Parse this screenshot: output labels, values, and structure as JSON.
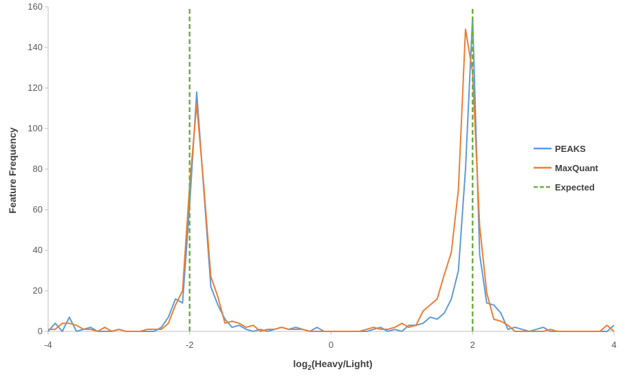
{
  "chart_data": {
    "type": "line",
    "title": "",
    "xlabel": "log2(Heavy/Light)",
    "xlabel_parts": {
      "prefix": "log",
      "subscript": "2",
      "suffix": "(Heavy/Light)"
    },
    "ylabel": "Feature Frequency",
    "xlim": [
      -4,
      4
    ],
    "ylim": [
      0,
      160
    ],
    "x_ticks": [
      -4,
      -2,
      0,
      2,
      4
    ],
    "y_ticks": [
      0,
      20,
      40,
      60,
      80,
      100,
      120,
      140,
      160
    ],
    "x_tick_labels": [
      "-4",
      "-2",
      "0",
      "2",
      "4"
    ],
    "y_tick_labels": [
      "0",
      "20",
      "40",
      "60",
      "80",
      "100",
      "120",
      "140",
      "160"
    ],
    "grid": false,
    "legend_position": "right",
    "series": [
      {
        "name": "PEAKS",
        "color": "#5B9BD5",
        "style": "solid",
        "x": [
          -4.0,
          -3.9,
          -3.8,
          -3.7,
          -3.6,
          -3.5,
          -3.4,
          -3.3,
          -3.2,
          -3.1,
          -3.0,
          -2.9,
          -2.8,
          -2.7,
          -2.6,
          -2.5,
          -2.4,
          -2.3,
          -2.2,
          -2.1,
          -2.0,
          -1.9,
          -1.8,
          -1.7,
          -1.6,
          -1.5,
          -1.4,
          -1.3,
          -1.2,
          -1.1,
          -1.0,
          -0.9,
          -0.8,
          -0.7,
          -0.6,
          -0.5,
          -0.4,
          -0.3,
          -0.2,
          -0.1,
          0.0,
          0.1,
          0.2,
          0.3,
          0.4,
          0.5,
          0.6,
          0.7,
          0.8,
          0.9,
          1.0,
          1.1,
          1.2,
          1.3,
          1.4,
          1.5,
          1.6,
          1.7,
          1.8,
          1.9,
          2.0,
          2.1,
          2.2,
          2.3,
          2.4,
          2.5,
          2.6,
          2.7,
          2.8,
          2.9,
          3.0,
          3.1,
          3.2,
          3.3,
          3.4,
          3.5,
          3.6,
          3.7,
          3.8,
          3.9,
          4.0
        ],
        "y": [
          0,
          4,
          0,
          7,
          0,
          1,
          2,
          0,
          0,
          0,
          1,
          0,
          0,
          0,
          0,
          0,
          2,
          7,
          16,
          14,
          62,
          118,
          70,
          22,
          13,
          6,
          2,
          3,
          1,
          0,
          1,
          0,
          1,
          2,
          1,
          2,
          1,
          0,
          2,
          0,
          0,
          0,
          0,
          0,
          0,
          0,
          1,
          2,
          0,
          1,
          0,
          3,
          3,
          4,
          7,
          6,
          9,
          16,
          30,
          80,
          155,
          38,
          14,
          13,
          9,
          1,
          2,
          1,
          0,
          1,
          2,
          0,
          0,
          0,
          0,
          0,
          0,
          0,
          0,
          0,
          3
        ]
      },
      {
        "name": "MaxQuant",
        "color": "#ED7D31",
        "style": "solid",
        "x": [
          -4.0,
          -3.9,
          -3.8,
          -3.7,
          -3.6,
          -3.5,
          -3.4,
          -3.3,
          -3.2,
          -3.1,
          -3.0,
          -2.9,
          -2.8,
          -2.7,
          -2.6,
          -2.5,
          -2.4,
          -2.3,
          -2.2,
          -2.1,
          -2.0,
          -1.9,
          -1.8,
          -1.7,
          -1.6,
          -1.5,
          -1.4,
          -1.3,
          -1.2,
          -1.1,
          -1.0,
          -0.9,
          -0.8,
          -0.7,
          -0.6,
          -0.5,
          -0.4,
          -0.3,
          -0.2,
          0.4,
          0.5,
          0.6,
          0.7,
          0.8,
          0.9,
          1.0,
          1.1,
          1.2,
          1.3,
          1.4,
          1.5,
          1.6,
          1.7,
          1.8,
          1.9,
          2.0,
          2.1,
          2.2,
          2.3,
          2.4,
          2.5,
          2.6,
          2.7,
          2.8,
          2.9,
          3.0,
          3.1,
          3.2,
          3.3,
          3.4,
          3.5,
          3.6,
          3.7,
          3.8,
          3.9,
          4.0
        ],
        "y": [
          1,
          1,
          4,
          4,
          3,
          1,
          1,
          0,
          2,
          0,
          1,
          0,
          0,
          0,
          1,
          1,
          1,
          4,
          13,
          20,
          72,
          112,
          72,
          27,
          17,
          4,
          5,
          4,
          2,
          3,
          0,
          1,
          1,
          2,
          1,
          1,
          1,
          0,
          0,
          0,
          1,
          2,
          1,
          1,
          2,
          4,
          2,
          3,
          10,
          13,
          16,
          28,
          39,
          70,
          149,
          128,
          52,
          19,
          6,
          5,
          3,
          0,
          0,
          0,
          0,
          0,
          1,
          0,
          0,
          0,
          0,
          0,
          0,
          0,
          3,
          0
        ]
      },
      {
        "name": "Expected",
        "color": "#70AD47",
        "style": "dashed",
        "segments": [
          {
            "x": [
              -2,
              -2
            ],
            "y": [
              0,
              160
            ]
          },
          {
            "x": [
              2,
              2
            ],
            "y": [
              0,
              160
            ]
          }
        ]
      }
    ]
  }
}
